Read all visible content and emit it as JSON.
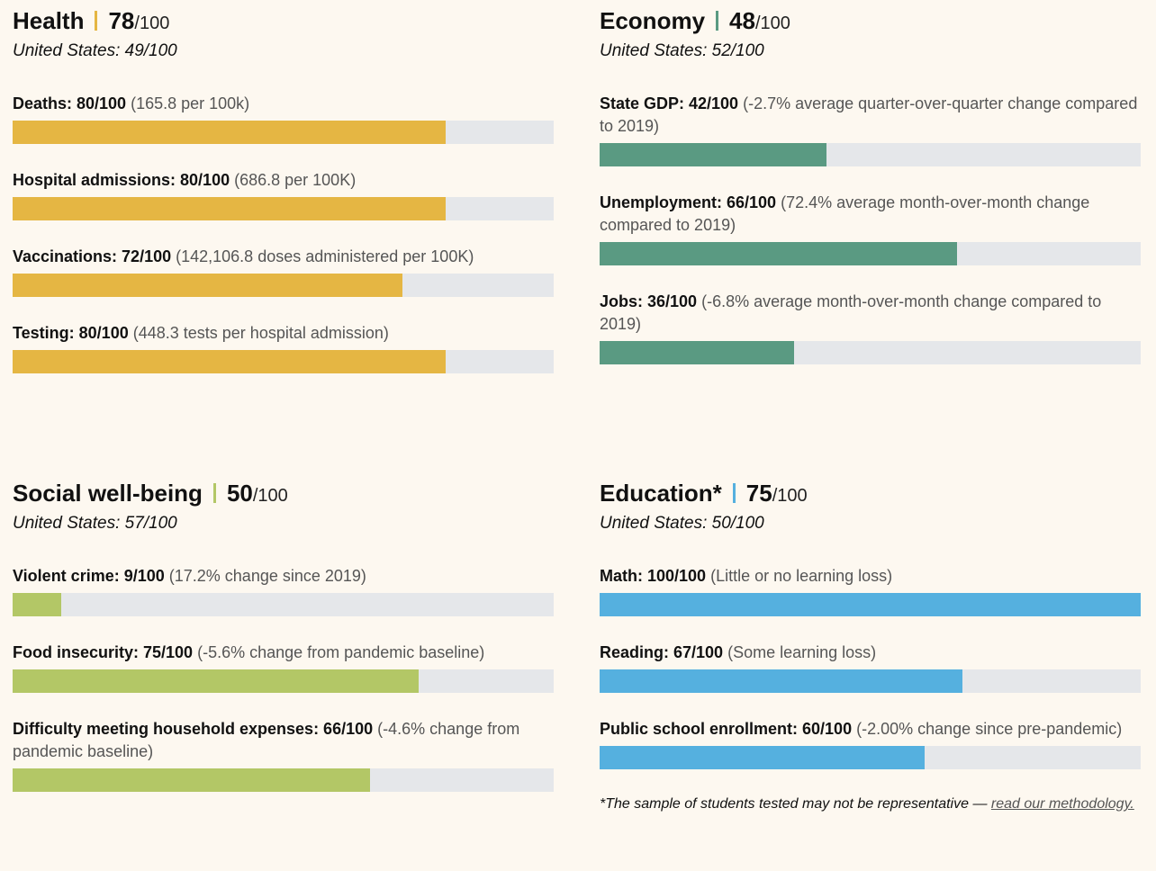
{
  "panels": [
    {
      "title": "Health",
      "score": 78,
      "score_suffix": "/100",
      "us": "United States: 49/100",
      "color": "#e5b643",
      "max": 100,
      "metrics": [
        {
          "label": "Deaths: 80/100",
          "value": 80,
          "detail": "(165.8 per 100k)"
        },
        {
          "label": "Hospital admissions: 80/100",
          "value": 80,
          "detail": "(686.8 per 100K)"
        },
        {
          "label": "Vaccinations: 72/100",
          "value": 72,
          "detail": "(142,106.8 doses administered per 100K)"
        },
        {
          "label": "Testing: 80/100",
          "value": 80,
          "detail": "(448.3 tests per hospital admission)"
        }
      ]
    },
    {
      "title": "Economy",
      "score": 48,
      "score_suffix": "/100",
      "us": "United States: 52/100",
      "color": "#5a9a82",
      "max": 100,
      "metrics": [
        {
          "label": "State GDP: 42/100",
          "value": 42,
          "detail": "(-2.7% average quarter-over-quarter change compared to 2019)"
        },
        {
          "label": "Unemployment: 66/100",
          "value": 66,
          "detail": "(72.4% average month-over-month change compared to 2019)"
        },
        {
          "label": "Jobs: 36/100",
          "value": 36,
          "detail": "(-6.8% average month-over-month change compared to 2019)"
        }
      ]
    },
    {
      "title": "Social well-being",
      "score": 50,
      "score_suffix": "/100",
      "us": "United States: 57/100",
      "color": "#b3c766",
      "max": 100,
      "metrics": [
        {
          "label": "Violent crime: 9/100",
          "value": 9,
          "detail": "(17.2% change since 2019)"
        },
        {
          "label": "Food insecurity: 75/100",
          "value": 75,
          "detail": "(-5.6% change from pandemic baseline)"
        },
        {
          "label": "Difficulty meeting household expenses: 66/100",
          "value": 66,
          "detail": "(-4.6% change from pandemic baseline)"
        }
      ]
    },
    {
      "title": "Education*",
      "score": 75,
      "score_suffix": "/100",
      "us": "United States: 50/100",
      "color": "#55b0df",
      "max": 100,
      "metrics": [
        {
          "label": "Math: 100/100",
          "value": 100,
          "detail": "(Little or no learning loss)"
        },
        {
          "label": "Reading: 67/100",
          "value": 67,
          "detail": "(Some learning loss)"
        },
        {
          "label": "Public school enrollment: 60/100",
          "value": 60,
          "detail": "(-2.00% change since pre-pandemic)"
        }
      ],
      "footnote": "*The sample of students tested may not be representative —",
      "footnote_link": "read our methodology."
    }
  ]
}
